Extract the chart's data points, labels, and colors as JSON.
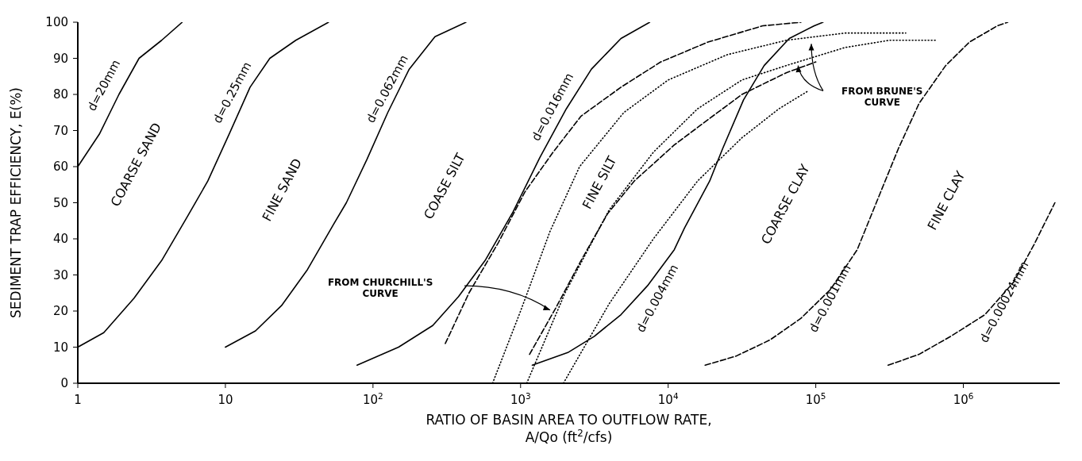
{
  "chart_data": {
    "type": "line",
    "xlabel": "RATIO OF BASIN AREA TO OUTFLOW RATE,\nA/Qo (ft$^{2}$/cfs)",
    "ylabel": "SEDIMENT TRAP EFFICIENCY, E(%)",
    "log": "x",
    "xlim": [
      1,
      4500000
    ],
    "xticks": [
      1,
      10,
      {
        "value": 100,
        "label": "10$^{2}$"
      },
      {
        "value": 1000,
        "label": "10$^{3}$"
      },
      {
        "value": 10000,
        "label": "10$^{4}$"
      },
      {
        "value": 100000,
        "label": "10$^{5}$"
      },
      {
        "value": 1000000,
        "label": "10$^{6}$"
      }
    ],
    "ylim": [
      0,
      100
    ],
    "yticks": [
      0,
      10,
      20,
      30,
      40,
      50,
      60,
      70,
      80,
      90,
      100
    ],
    "annotations": [
      "COARSE SAND",
      "FINE SAND",
      "COASE SILT",
      "FINE SILT",
      "COARSE CLAY",
      "FINE CLAY",
      "FROM CHURCHILL'S CURVE",
      "FROM BRUNE'S CURVE"
    ],
    "series": [
      {
        "name": "d=20mm",
        "color": "#000000",
        "line_style": "solid",
        "x": [
          1,
          1.4,
          1.9,
          2.6,
          3.7,
          5.1
        ],
        "values": [
          60,
          69,
          80,
          90,
          95,
          100
        ]
      },
      {
        "name": "d=0.25mm",
        "color": "#000000",
        "line_style": "solid",
        "x": [
          1,
          1.5,
          2.4,
          3.7,
          5.5,
          7.6,
          10.6,
          14.7,
          20,
          30,
          50
        ],
        "values": [
          10,
          14,
          23.5,
          34,
          46,
          56,
          69,
          82,
          90,
          95,
          100
        ]
      },
      {
        "name": "d=0.062mm",
        "color": "#000000",
        "line_style": "solid",
        "x": [
          10,
          16,
          24,
          36,
          54,
          66,
          91,
          126,
          176,
          263,
          427
        ],
        "values": [
          10,
          14.5,
          21.5,
          31.5,
          44,
          50,
          62,
          75,
          87,
          96,
          100
        ]
      },
      {
        "name": "d=0.016mm",
        "color": "#000000",
        "line_style": "solid",
        "x": [
          78,
          149,
          254,
          380,
          575,
          890,
          1350,
          2040,
          3020,
          4790,
          7500
        ],
        "values": [
          5,
          10,
          16,
          24,
          34,
          47.5,
          62.5,
          76,
          87,
          95.5,
          100
        ]
      },
      {
        "name": "d=0.004mm",
        "color": "#000000",
        "line_style": "solid",
        "x": [
          1200,
          2090,
          3160,
          4790,
          7240,
          11000,
          12900,
          19100,
          23400,
          32400,
          44700,
          66100,
          97700,
          112000
        ],
        "values": [
          5,
          8.5,
          13,
          19,
          27,
          37,
          43,
          56,
          65,
          78.5,
          88,
          95.5,
          99,
          100
        ]
      },
      {
        "name": "d=0.001mm",
        "color": "#000000",
        "line_style": "dashed",
        "x": [
          17800,
          28800,
          49000,
          79400,
          126000,
          191000,
          263000,
          363000,
          501000,
          759000,
          1100000,
          1700000,
          2000000
        ],
        "values": [
          5,
          7.5,
          12,
          18,
          26,
          37,
          51,
          65,
          77.5,
          88,
          94.5,
          99,
          100
        ]
      },
      {
        "name": "d=0.00024mm",
        "color": "#000000",
        "line_style": "dashed",
        "x": [
          309000,
          501000,
          822000,
          1400000,
          2190000,
          3020000,
          4170000
        ],
        "values": [
          5,
          8,
          13,
          19,
          28,
          38.5,
          50
        ]
      },
      {
        "color": "#000000",
        "line_style": "dashed",
        "x": [
          309,
          447,
          708,
          1070,
          1660,
          2570,
          4790,
          8910,
          18600,
          43700,
          79400
        ],
        "values": [
          11,
          25,
          39,
          53,
          64,
          74,
          82,
          89,
          94.5,
          99,
          100
        ]
      },
      {
        "color": "#000000",
        "line_style": "dashed",
        "x": [
          1150,
          1740,
          2570,
          3890,
          5890,
          11000,
          18600,
          31600,
          63100,
          100000
        ],
        "values": [
          8,
          21,
          34,
          47,
          56,
          66,
          73,
          80,
          86,
          89
        ]
      },
      {
        "color": "#000000",
        "line_style": "dotted",
        "x": [
          646,
          1000,
          1580,
          2510,
          5010,
          10000,
          25100,
          63100,
          158000,
          407000
        ],
        "values": [
          0,
          20,
          42,
          60,
          75,
          84,
          91,
          95,
          97,
          97
        ]
      },
      {
        "color": "#000000",
        "line_style": "dotted",
        "x": [
          1100,
          2000,
          3980,
          7940,
          15800,
          31600,
          63100,
          158000,
          316000,
          661000
        ],
        "values": [
          0,
          25,
          48,
          64,
          76,
          84,
          88,
          93,
          95,
          95
        ]
      },
      {
        "color": "#000000",
        "line_style": "dotted",
        "x": [
          1950,
          3980,
          7940,
          15800,
          31600,
          56200,
          89100
        ],
        "values": [
          0,
          22,
          40,
          56,
          68,
          76,
          81
        ]
      }
    ]
  }
}
